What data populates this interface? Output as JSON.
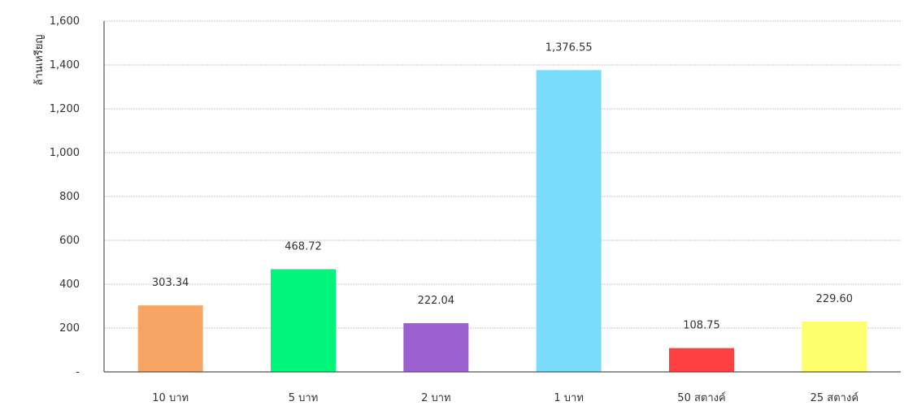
{
  "chart_data": {
    "type": "bar",
    "categories": [
      "10 บาท",
      "5 บาท",
      "2 บาท",
      "1 บาท",
      "50 สตางค์",
      "25 สตางค์"
    ],
    "values": [
      303.34,
      468.72,
      222.04,
      1376.55,
      108.75,
      229.6
    ],
    "data_labels": [
      "303.34",
      "468.72",
      "222.04",
      "1,376.55",
      "108.75",
      "229.60"
    ],
    "colors": [
      "#F7A564",
      "#00F57A",
      "#9C5FCE",
      "#7ADCFB",
      "#FF4040",
      "#FFFF6E"
    ],
    "ylabel": "ล้านเหรียญ",
    "ylim": [
      0,
      1600
    ],
    "yticks": [
      0,
      200,
      400,
      600,
      800,
      1000,
      1200,
      1400,
      1600
    ],
    "ytick_labels": [
      "-",
      "200",
      "400",
      "600",
      "800",
      "1,000",
      "1,200",
      "1,400",
      "1,600"
    ],
    "grid": true
  }
}
